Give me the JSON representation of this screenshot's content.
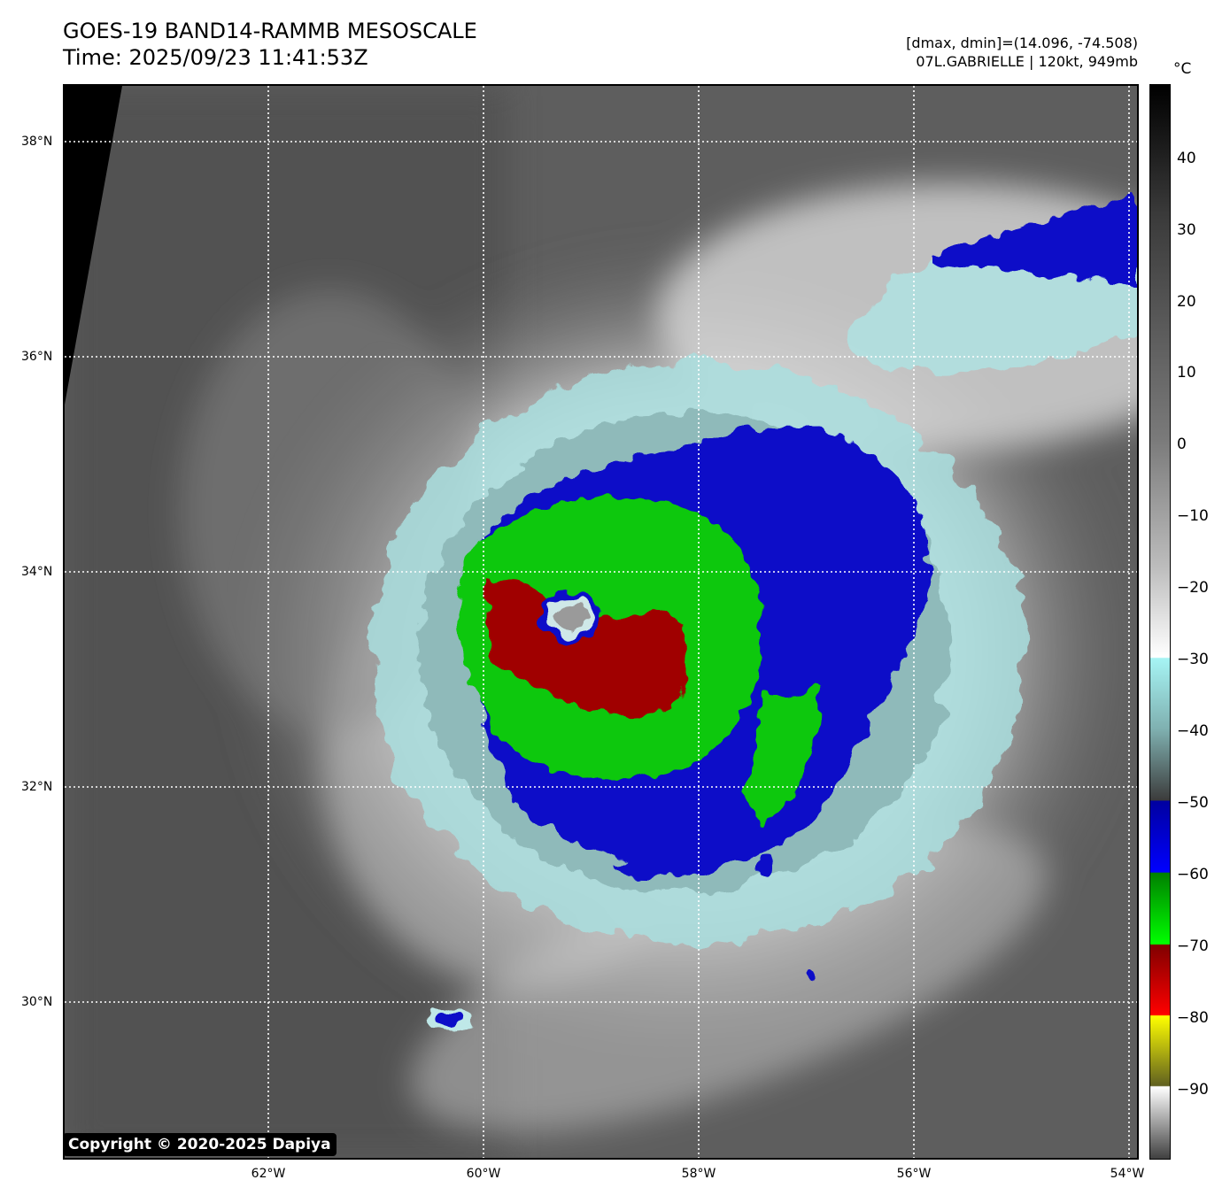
{
  "header": {
    "title_line1": "GOES-19 BAND14-RAMMB MESOSCALE",
    "title_line2": "Time: 2025/09/23 11:41:53Z",
    "meta_line1": "[dmax, dmin]=(14.096, -74.508)",
    "meta_line2": "07L.GABRIELLE | 120kt, 949mb"
  },
  "map": {
    "lat_labels": [
      "38°N",
      "36°N",
      "34°N",
      "32°N",
      "30°N"
    ],
    "lon_labels": [
      "62°W",
      "60°W",
      "58°W",
      "56°W",
      "54°W"
    ],
    "copyright": "Copyright © 2020-2025 Dapiya",
    "storm": "07L.GABRIELLE"
  },
  "colorbar": {
    "unit": "°C",
    "ticks": [
      "40",
      "30",
      "20",
      "10",
      "0",
      "−10",
      "−20",
      "−30",
      "−40",
      "−50",
      "−60",
      "−70",
      "−80",
      "−90"
    ]
  }
}
